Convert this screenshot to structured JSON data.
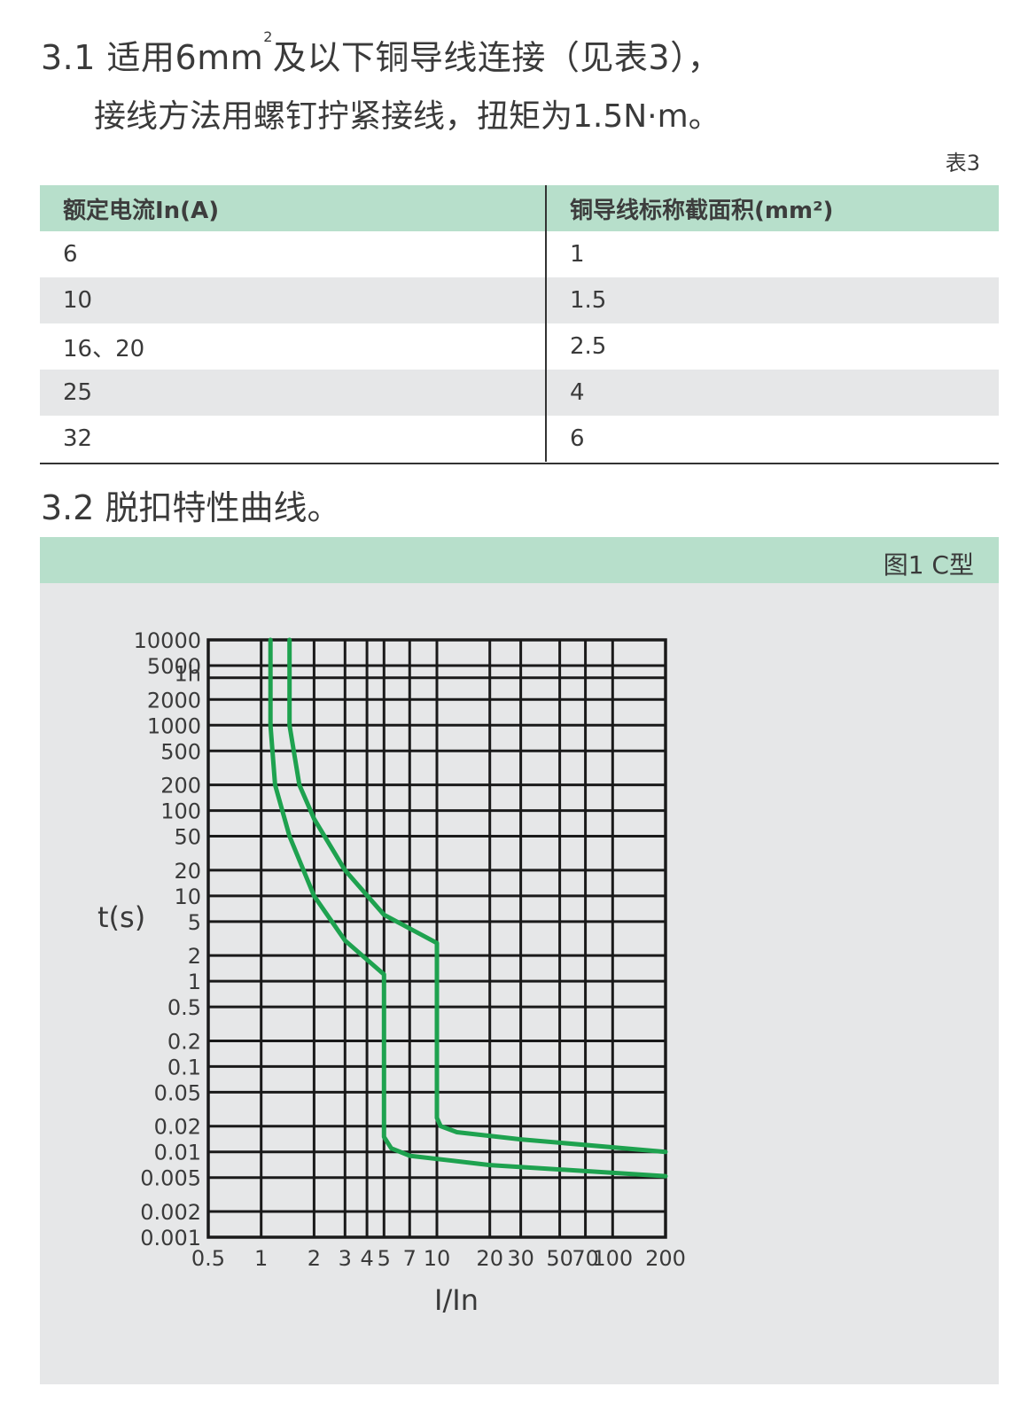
{
  "section31": {
    "title_part1": "3.1 适用6mm",
    "title_sup": "2",
    "title_part2": "及以下铜导线连接（见表3），",
    "line2": "接线方法用螺钉拧紧接线，扭矩为1.5N·m。"
  },
  "table3": {
    "label": "表3",
    "headers": [
      "额定电流In(A)",
      "铜导线标称截面积(mm²)"
    ],
    "rows": [
      [
        "6",
        "1"
      ],
      [
        "10",
        "1.5"
      ],
      [
        "16、20",
        "2.5"
      ],
      [
        "25",
        "4"
      ],
      [
        "32",
        "6"
      ]
    ]
  },
  "section32": {
    "title": "3.2 脱扣特性曲线。"
  },
  "figure": {
    "caption": "图1   C型"
  },
  "chart_data": {
    "type": "line",
    "xscale": "log",
    "yscale": "log",
    "xlabel": "I/In",
    "ylabel": "t(s)",
    "xlim": [
      0.5,
      200
    ],
    "ylim": [
      0.001,
      10000
    ],
    "x_tick_labels": [
      "0.5",
      "1",
      "2",
      "3",
      "4",
      "5",
      "7",
      "10",
      "20",
      "30",
      "50",
      "70",
      "100",
      "200"
    ],
    "y_tick_labels": [
      "10000",
      "5000",
      "1h",
      "2000",
      "1000",
      "500",
      "200",
      "100",
      "50",
      "20",
      "10",
      "5",
      "2",
      "1",
      "0.5",
      "0.2",
      "0.1",
      "0.05",
      "0.02",
      "0.01",
      "0.005",
      "0.002",
      "0.001"
    ],
    "line_color": "#1ea24f",
    "series": [
      {
        "points": [
          [
            1.13,
            10000
          ],
          [
            1.13,
            1000
          ],
          [
            1.2,
            200
          ],
          [
            1.45,
            50
          ],
          [
            2.0,
            10
          ],
          [
            3.0,
            3
          ],
          [
            5.0,
            1.2
          ],
          [
            5.0,
            0.015
          ],
          [
            5.5,
            0.011
          ],
          [
            7.0,
            0.009
          ],
          [
            20,
            0.007
          ],
          [
            200,
            0.0052
          ]
        ]
      },
      {
        "points": [
          [
            1.45,
            10000
          ],
          [
            1.45,
            1000
          ],
          [
            1.65,
            200
          ],
          [
            2.0,
            80
          ],
          [
            3.0,
            20
          ],
          [
            5.0,
            6
          ],
          [
            10,
            2.8
          ],
          [
            10,
            0.025
          ],
          [
            10.5,
            0.02
          ],
          [
            13,
            0.017
          ],
          [
            30,
            0.014
          ],
          [
            200,
            0.01
          ]
        ]
      }
    ]
  }
}
